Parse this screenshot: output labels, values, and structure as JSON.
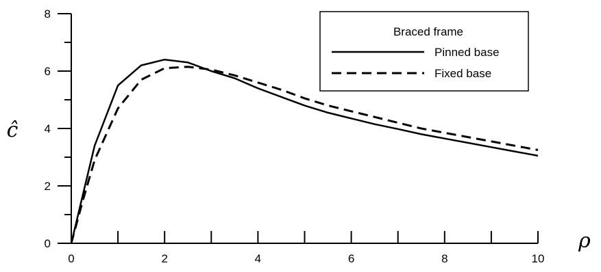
{
  "chart_data": {
    "type": "line",
    "xlabel": "ρ",
    "ylabel": "ĉ",
    "xlim": [
      0,
      10
    ],
    "ylim": [
      0,
      8
    ],
    "xticks": [
      0,
      2,
      4,
      6,
      8,
      10
    ],
    "yticks": [
      0,
      2,
      4,
      6,
      8
    ],
    "grid": false,
    "legend": {
      "title": "Braced frame",
      "position": "top-right"
    },
    "series": [
      {
        "name": "Pinned base",
        "line_style": "solid",
        "color": "#000000",
        "x": [
          0,
          0.25,
          0.5,
          1.0,
          1.5,
          2.0,
          2.5,
          3.0,
          3.5,
          4.0,
          4.5,
          5.0,
          5.5,
          6.0,
          6.5,
          7.0,
          7.5,
          8.0,
          8.5,
          9.0,
          9.5,
          10.0
        ],
        "y": [
          0,
          1.7,
          3.4,
          5.5,
          6.2,
          6.4,
          6.3,
          6.0,
          5.75,
          5.4,
          5.1,
          4.8,
          4.55,
          4.35,
          4.15,
          3.98,
          3.8,
          3.65,
          3.5,
          3.35,
          3.2,
          3.05
        ]
      },
      {
        "name": "Fixed base",
        "line_style": "dashed",
        "color": "#000000",
        "x": [
          0,
          0.25,
          0.5,
          1.0,
          1.5,
          2.0,
          2.5,
          3.0,
          3.5,
          4.0,
          4.5,
          5.0,
          5.5,
          6.0,
          6.5,
          7.0,
          7.5,
          8.0,
          8.5,
          9.0,
          9.5,
          10.0
        ],
        "y": [
          0,
          1.5,
          2.9,
          4.7,
          5.7,
          6.1,
          6.15,
          6.05,
          5.85,
          5.6,
          5.35,
          5.05,
          4.8,
          4.6,
          4.4,
          4.2,
          4.0,
          3.85,
          3.7,
          3.55,
          3.4,
          3.25
        ]
      }
    ]
  }
}
